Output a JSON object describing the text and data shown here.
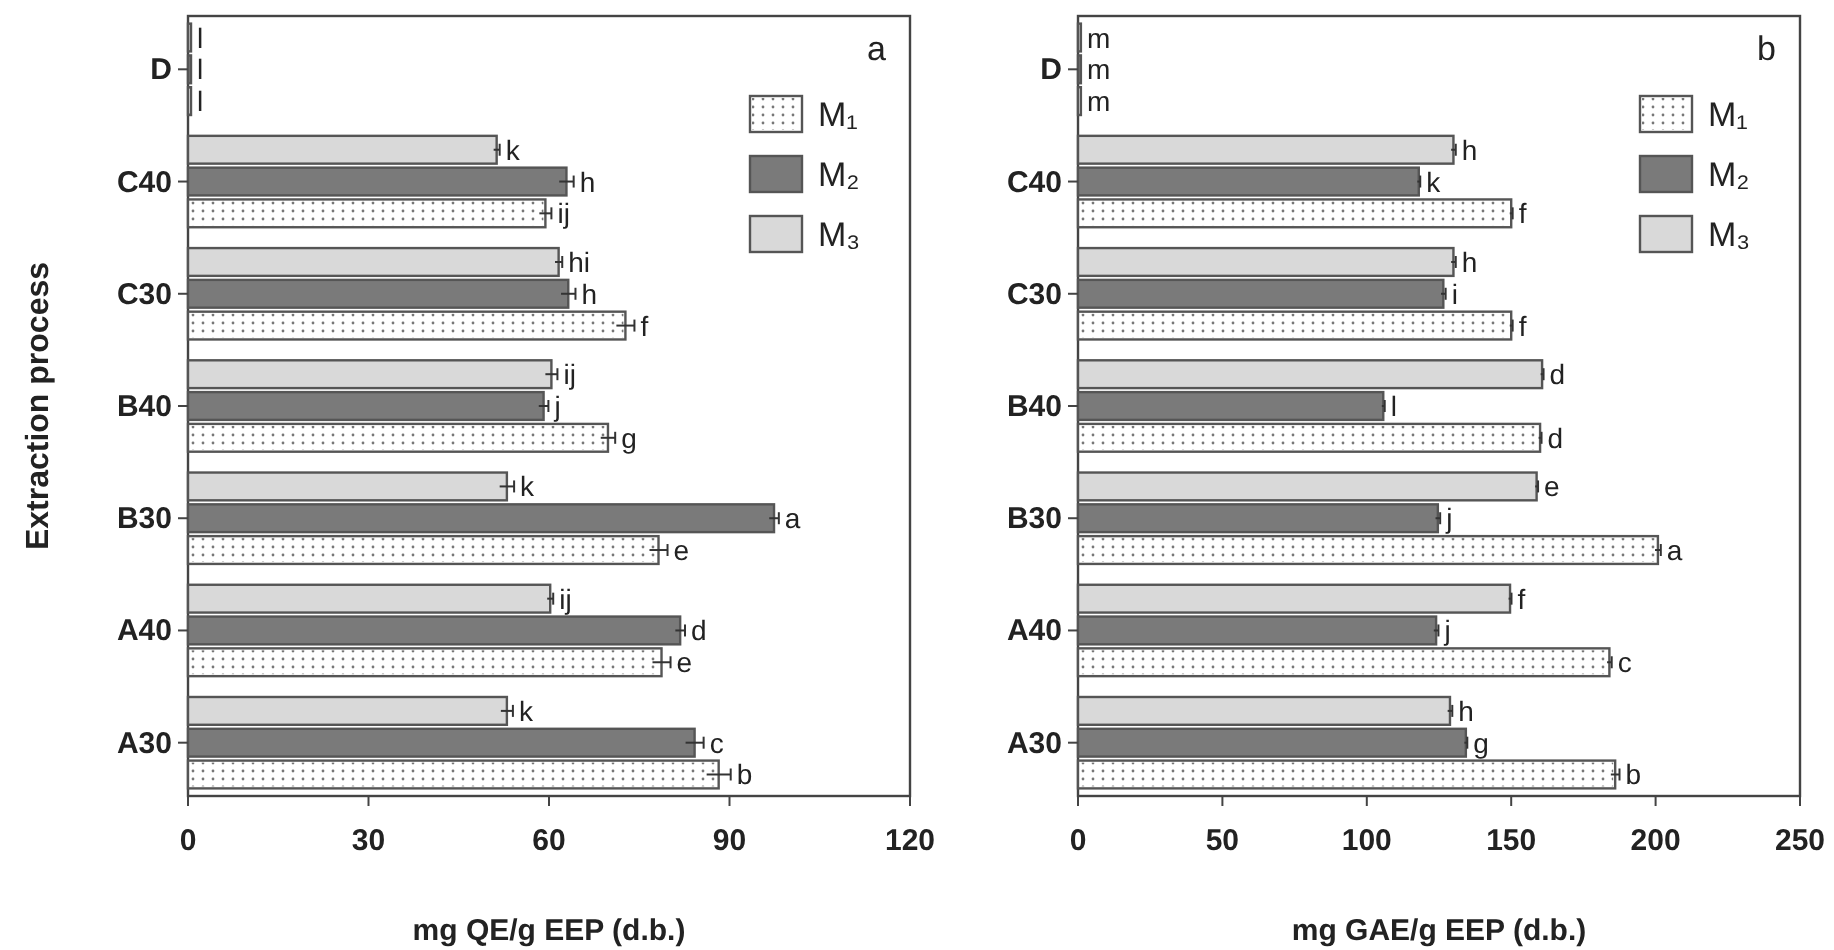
{
  "chart_data": [
    {
      "type": "bar",
      "orientation": "horizontal",
      "categories": [
        "D",
        "C40",
        "C30",
        "B40",
        "B30",
        "A40",
        "A30"
      ],
      "xlabel": "mg QE/g EEP (d.b.)",
      "ylabel": "Extraction process",
      "xlim": [
        0,
        120
      ],
      "xticks": [
        0,
        30,
        60,
        90,
        120
      ],
      "legend": "top right",
      "annotations": [
        "a"
      ],
      "series": [
        {
          "name": "M₁",
          "color": "#ffffff",
          "values": [
            0.5,
            59.4,
            72.7,
            69.8,
            78.2,
            78.7,
            88.2
          ],
          "errors": [
            null,
            1,
            1.5,
            1.2,
            1.5,
            1.5,
            2
          ],
          "value_labels": [
            "l",
            "ij",
            "f",
            "g",
            "e",
            "e",
            "b"
          ]
        },
        {
          "name": "M₂",
          "color": "#7a7a7a",
          "values": [
            0.5,
            62.9,
            63.2,
            59.1,
            97.4,
            81.8,
            84.2
          ],
          "errors": [
            null,
            1.2,
            1.2,
            0.8,
            0.8,
            0.8,
            1.5
          ],
          "value_labels": [
            "l",
            "h",
            "h",
            "j",
            "a",
            "d",
            "c"
          ]
        },
        {
          "name": "M₃",
          "color": "#d9d9d9",
          "values": [
            0.5,
            51.3,
            61.6,
            60.4,
            53,
            60.2,
            53
          ],
          "errors": [
            null,
            0.5,
            0.6,
            1,
            1.2,
            0.5,
            1
          ],
          "value_labels": [
            "l",
            "k",
            "hi",
            "ij",
            "k",
            "ij",
            "k"
          ]
        }
      ]
    },
    {
      "type": "bar",
      "orientation": "horizontal",
      "categories": [
        "D",
        "C40",
        "C30",
        "B40",
        "B30",
        "A40",
        "A30"
      ],
      "xlabel": "mg GAE/g EEP (d.b.)",
      "xlim": [
        0,
        250
      ],
      "xticks": [
        0,
        50,
        100,
        150,
        200,
        250
      ],
      "legend": "top right",
      "annotations": [
        "b"
      ],
      "series": [
        {
          "name": "M₁",
          "color": "#ffffff",
          "values": [
            1,
            150,
            150,
            160,
            200.8,
            184,
            186
          ],
          "errors": [
            null,
            0.5,
            0.5,
            0.5,
            1,
            0.8,
            1.5
          ],
          "value_labels": [
            "m",
            "f",
            "f",
            "d",
            "a",
            "c",
            "b"
          ]
        },
        {
          "name": "M₂",
          "color": "#7a7a7a",
          "values": [
            1,
            118,
            126.5,
            105.7,
            124.6,
            124,
            134.3
          ],
          "errors": [
            null,
            0.5,
            0.8,
            0.5,
            0.8,
            0.8,
            0.5
          ],
          "value_labels": [
            "m",
            "k",
            "i",
            "l",
            "j",
            "j",
            "g"
          ]
        },
        {
          "name": "M₃",
          "color": "#d9d9d9",
          "values": [
            1,
            130,
            130,
            160.7,
            158.8,
            149.6,
            128.8
          ],
          "errors": [
            null,
            0.8,
            0.8,
            0.5,
            0.5,
            0.5,
            0.8
          ],
          "value_labels": [
            "m",
            "h",
            "h",
            "d",
            "e",
            "f",
            "h"
          ]
        }
      ]
    }
  ]
}
